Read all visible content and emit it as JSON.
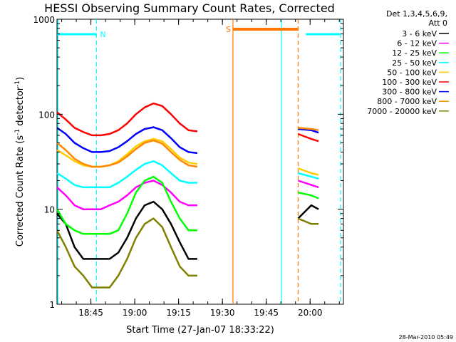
{
  "chart_data": {
    "type": "line",
    "title": "HESSI Observing Summary Count Rates, Corrected",
    "xlabel": "Start Time (27-Jan-07 18:33:22)",
    "ylabel_parts": [
      "Corrected Count Rate (s",
      "-1",
      " detector",
      "-1",
      ")"
    ],
    "y_scale": "log",
    "ylim": [
      1,
      1000
    ],
    "xlim_minutes": [
      0,
      98
    ],
    "xticks": [
      {
        "label": "18:45",
        "minutes": 11.6
      },
      {
        "label": "19:00",
        "minutes": 26.6
      },
      {
        "label": "19:15",
        "minutes": 41.6
      },
      {
        "label": "19:30",
        "minutes": 56.6
      },
      {
        "label": "19:45",
        "minutes": 71.6
      },
      {
        "label": "20:00",
        "minutes": 86.6
      }
    ],
    "yticks": [
      {
        "label": "1",
        "value": 1
      },
      {
        "label": "10",
        "value": 10
      },
      {
        "label": "100",
        "value": 100
      },
      {
        "label": "1000",
        "value": 1000
      }
    ],
    "legend": {
      "position": "right",
      "header": [
        "Det 1,3,4,5,6,9,",
        "Att 0"
      ]
    },
    "series": [
      {
        "name": "3 - 6 keV",
        "color": "#000000",
        "values": [
          9,
          7,
          4,
          3,
          3,
          3,
          3,
          3.5,
          5,
          8,
          11,
          12,
          10,
          7,
          4.5,
          3,
          3,
          8,
          11,
          10
        ]
      },
      {
        "name": "6 - 12 keV",
        "color": "#ff00ff",
        "values": [
          17,
          14,
          11,
          10,
          10,
          10,
          11,
          12,
          14,
          17,
          19,
          20,
          18,
          15,
          12,
          11,
          11,
          20,
          18,
          17
        ]
      },
      {
        "name": "12 - 25 keV",
        "color": "#00ff00",
        "values": [
          10,
          7,
          6,
          5.5,
          5.5,
          5.5,
          5.5,
          6,
          9,
          15,
          20,
          22,
          19,
          12,
          8,
          6,
          6,
          15,
          14,
          13
        ]
      },
      {
        "name": "25 - 50 keV",
        "color": "#00ffff",
        "values": [
          24,
          21,
          18,
          17,
          17,
          17,
          17,
          19,
          22,
          26,
          30,
          32,
          29,
          24,
          20,
          19,
          19,
          24,
          22,
          21
        ]
      },
      {
        "name": "50 - 100 keV",
        "color": "#ffcc00",
        "values": [
          42,
          37,
          32,
          29,
          28,
          28,
          29,
          32,
          38,
          46,
          52,
          55,
          52,
          43,
          35,
          31,
          30,
          27,
          24,
          23
        ]
      },
      {
        "name": "100 - 300 keV",
        "color": "#ff0000",
        "values": [
          105,
          88,
          72,
          65,
          60,
          60,
          62,
          68,
          80,
          100,
          118,
          130,
          122,
          100,
          80,
          68,
          66,
          62,
          55,
          52
        ]
      },
      {
        "name": "300 - 800 keV",
        "color": "#0000ff",
        "values": [
          72,
          62,
          50,
          44,
          40,
          40,
          41,
          45,
          52,
          62,
          70,
          73,
          68,
          56,
          45,
          40,
          39,
          70,
          68,
          64
        ]
      },
      {
        "name": "800 - 7000 keV",
        "color": "#ff8800",
        "values": [
          50,
          42,
          34,
          30,
          28,
          28,
          29,
          31,
          36,
          43,
          50,
          53,
          49,
          40,
          33,
          29,
          28,
          72,
          70,
          68
        ]
      },
      {
        "name": "7000 - 20000 keV",
        "color": "#808000",
        "values": [
          6,
          4,
          2.5,
          2,
          1.5,
          1.5,
          1.5,
          2,
          3,
          5,
          7,
          8,
          6.5,
          4,
          2.5,
          2,
          2,
          8,
          7,
          7
        ]
      }
    ],
    "x_minutes": [
      0,
      3,
      6,
      9,
      12,
      15,
      18,
      21,
      24,
      27,
      30,
      33,
      36,
      39,
      42,
      45,
      48,
      82.5,
      87,
      89.5
    ],
    "segments": [
      [
        0,
        16
      ],
      [
        17,
        19
      ]
    ],
    "saa_bar": {
      "label": "S",
      "start_minutes": 60.2,
      "end_minutes": 82.5,
      "color": "#ff7700"
    },
    "night_bars": [
      {
        "label": "N",
        "start_minutes": 0,
        "end_minutes": 13.5,
        "color": "#00ffff"
      },
      {
        "label": "",
        "start_minutes": 85.2,
        "end_minutes": 97,
        "color": "#00ffff"
      }
    ],
    "vlines": [
      {
        "minutes": 0.3,
        "color": "#00ffff",
        "style": "solid"
      },
      {
        "minutes": 13.5,
        "color": "#00ffff",
        "style": "dashed"
      },
      {
        "minutes": 60.2,
        "color": "#ff7700",
        "style": "solid"
      },
      {
        "minutes": 76.8,
        "color": "#00ffff",
        "style": "solid"
      },
      {
        "minutes": 82.5,
        "color": "#ff7700",
        "style": "dashed"
      },
      {
        "minutes": 97,
        "color": "#00ffff",
        "style": "dashed"
      }
    ]
  },
  "footer": {
    "timestamp": "28-Mar-2010 05:49"
  }
}
